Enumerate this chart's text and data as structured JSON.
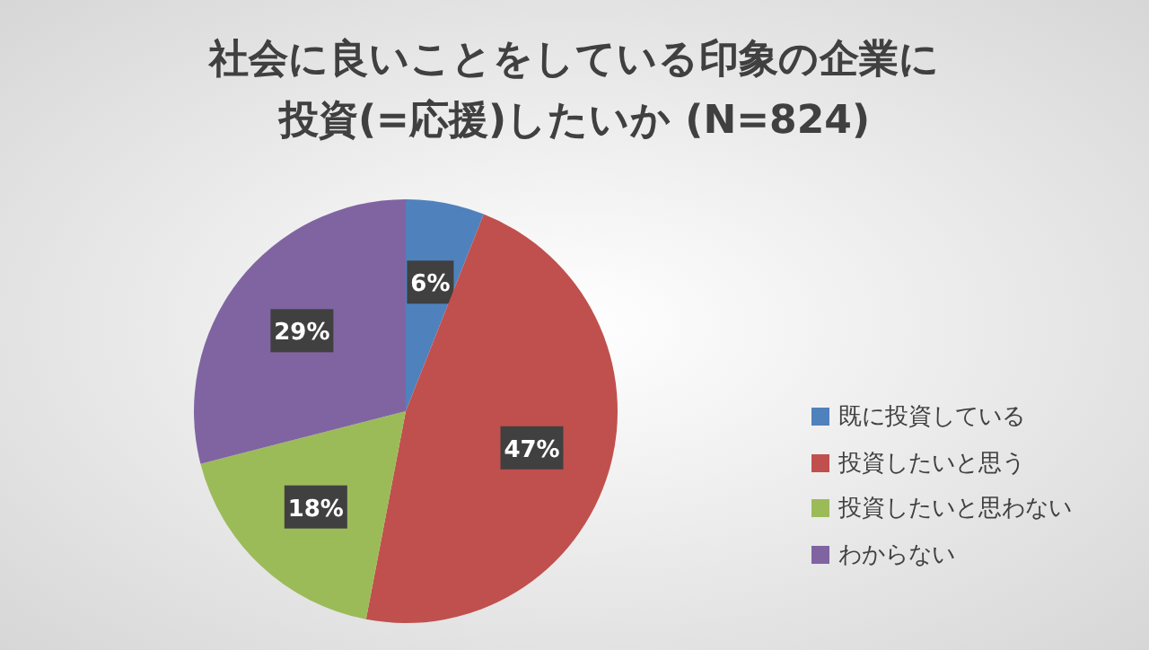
{
  "chart_data": {
    "type": "pie",
    "title": "社会に良いことをしている印象の企業に投資(=応援)したいか (N=824)",
    "categories": [
      "既に投資している",
      "投資したいと思う",
      "投資したいと思わない",
      "わからない"
    ],
    "values": [
      6,
      47,
      18,
      29
    ],
    "colors": [
      "#4f81bd",
      "#c0504d",
      "#9bbb59",
      "#8064a2"
    ],
    "value_labels": [
      "6%",
      "47%",
      "18%",
      "29%"
    ],
    "legend": "right"
  }
}
